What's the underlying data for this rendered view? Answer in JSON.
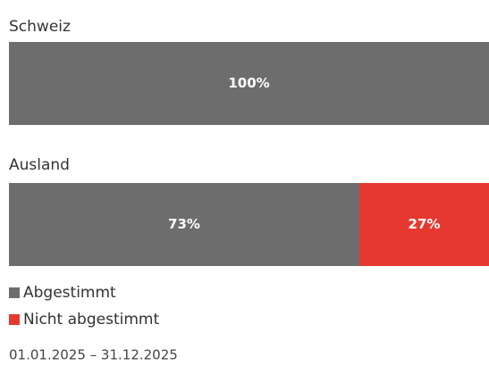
{
  "chart_data": {
    "type": "bar",
    "orientation": "horizontal",
    "stacked": true,
    "categories": [
      "Schweiz",
      "Ausland"
    ],
    "series": [
      {
        "name": "Abgestimmt",
        "color": "#6d6d6d",
        "values": [
          100,
          73
        ],
        "value_labels": [
          "100%",
          "73%"
        ]
      },
      {
        "name": "Nicht abgestimmt",
        "color": "#e5392f",
        "values": [
          0,
          27
        ],
        "value_labels": [
          null,
          "27%"
        ]
      }
    ],
    "xlim": [
      0,
      100
    ],
    "footnote": "01.01.2025 – 31.12.2025"
  }
}
